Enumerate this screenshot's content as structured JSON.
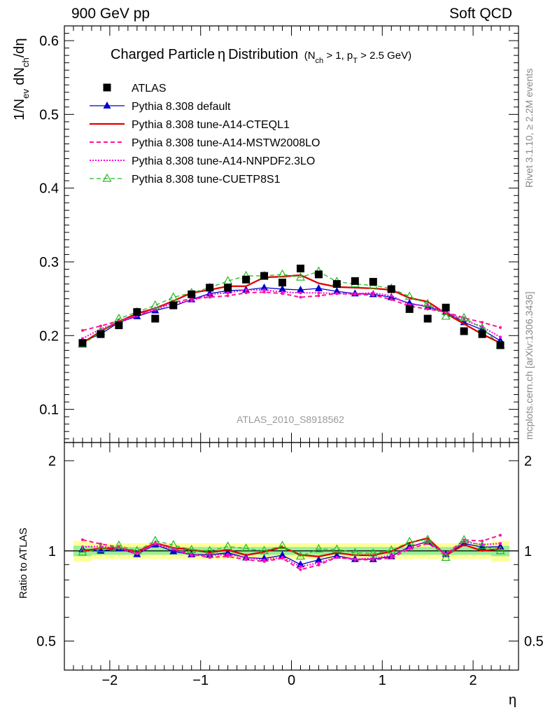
{
  "header": {
    "left": "900 GeV pp",
    "right": "Soft QCD"
  },
  "side_labels": {
    "rivet": "Rivet 3.1.10, ≥ 2.2M events",
    "mcplots": "mcplots.cern.ch [arXiv:1306.3436]"
  },
  "colors": {
    "atlas": "#000000",
    "default": "#0000cc",
    "cteql1": "#e00000",
    "mstw": "#ff1493",
    "nnpdf": "#ff00dd",
    "cuetp8s1": "#22bb22",
    "band_outer": "#ffff99",
    "band_inner": "#99ee99"
  },
  "chart_data": {
    "type": "line",
    "title_main": "Charged Particle",
    "title_eta": "η",
    "title_dist": "Distribution",
    "title_cuts": {
      "nch_pre": "(N",
      "nch_sub": "ch",
      "nch_mid": " > 1, p",
      "pt_sub": "T",
      "pt_post": " > 2.5 GeV)"
    },
    "ylabel": {
      "p1": "1/N",
      "s1": "ev",
      "p2": " dN",
      "s2": "ch",
      "p3": "/dη"
    },
    "xlabel": "η",
    "ratio_ylabel": "Ratio to ATLAS",
    "watermark": "ATLAS_2010_S8918562",
    "xlim": [
      -2.5,
      2.5
    ],
    "ylim": [
      0.055,
      0.62
    ],
    "ratio_ylim": [
      0.4,
      2.3
    ],
    "x_ticks": [
      -2,
      -1,
      0,
      1,
      2
    ],
    "x_tick_labels": [
      "−2",
      "−1",
      "0",
      "1",
      "2"
    ],
    "y_ticks": [
      0.1,
      0.2,
      0.3,
      0.4,
      0.5,
      0.6
    ],
    "y_tick_labels": [
      "0.1",
      "0.2",
      "0.3",
      "0.4",
      "0.5",
      "0.6"
    ],
    "ratio_ticks": [
      0.5,
      1,
      2
    ],
    "ratio_tick_labels": [
      "0.5",
      "1",
      "2"
    ],
    "x": [
      -2.3,
      -2.1,
      -1.9,
      -1.7,
      -1.5,
      -1.3,
      -1.1,
      -0.9,
      -0.7,
      -0.5,
      -0.3,
      -0.1,
      0.1,
      0.3,
      0.5,
      0.7,
      0.9,
      1.1,
      1.3,
      1.5,
      1.7,
      1.9,
      2.1,
      2.3
    ],
    "atlas": [
      0.19,
      0.202,
      0.214,
      0.232,
      0.223,
      0.241,
      0.256,
      0.265,
      0.265,
      0.276,
      0.281,
      0.272,
      0.291,
      0.283,
      0.27,
      0.274,
      0.273,
      0.263,
      0.236,
      0.223,
      0.238,
      0.206,
      0.202,
      0.187
    ],
    "band": {
      "outer_lo": [
        0.92,
        0.94,
        0.94,
        0.94,
        0.94,
        0.94,
        0.94,
        0.94,
        0.94,
        0.94,
        0.94,
        0.94,
        0.94,
        0.94,
        0.94,
        0.94,
        0.94,
        0.94,
        0.94,
        0.94,
        0.94,
        0.94,
        0.94,
        0.92
      ],
      "outer_hi": [
        1.08,
        1.06,
        1.06,
        1.06,
        1.06,
        1.06,
        1.06,
        1.06,
        1.06,
        1.06,
        1.06,
        1.06,
        1.06,
        1.06,
        1.06,
        1.06,
        1.06,
        1.06,
        1.06,
        1.06,
        1.06,
        1.06,
        1.06,
        1.08
      ],
      "inner_lo": [
        0.96,
        0.97,
        0.97,
        0.97,
        0.97,
        0.97,
        0.97,
        0.97,
        0.97,
        0.97,
        0.97,
        0.97,
        0.97,
        0.97,
        0.97,
        0.97,
        0.97,
        0.97,
        0.97,
        0.97,
        0.97,
        0.97,
        0.97,
        0.96
      ],
      "inner_hi": [
        1.04,
        1.03,
        1.03,
        1.03,
        1.03,
        1.03,
        1.03,
        1.03,
        1.03,
        1.03,
        1.03,
        1.03,
        1.03,
        1.03,
        1.03,
        1.03,
        1.03,
        1.03,
        1.03,
        1.03,
        1.03,
        1.03,
        1.03,
        1.04
      ]
    },
    "series": [
      {
        "name": "ATLAS",
        "key": "atlas",
        "marker": "square",
        "line": "none"
      },
      {
        "name": "Pythia 8.308 default",
        "key": "default",
        "marker": "triangle",
        "line": "solid",
        "width": 1.3,
        "values": [
          0.192,
          0.202,
          0.218,
          0.226,
          0.234,
          0.24,
          0.249,
          0.257,
          0.261,
          0.262,
          0.265,
          0.263,
          0.262,
          0.264,
          0.26,
          0.257,
          0.256,
          0.252,
          0.244,
          0.239,
          0.232,
          0.218,
          0.208,
          0.193
        ]
      },
      {
        "name": "Pythia 8.308 tune-A14-CTEQL1",
        "key": "cteql1",
        "marker": "none",
        "line": "solid",
        "width": 2.3,
        "values": [
          0.19,
          0.206,
          0.219,
          0.23,
          0.237,
          0.247,
          0.258,
          0.262,
          0.267,
          0.267,
          0.279,
          0.28,
          0.282,
          0.271,
          0.266,
          0.265,
          0.264,
          0.262,
          0.251,
          0.246,
          0.23,
          0.216,
          0.202,
          0.19
        ]
      },
      {
        "name": "Pythia 8.308 tune-A14-MSTW2008LO",
        "key": "mstw",
        "marker": "dot",
        "line": "dashed",
        "width": 2,
        "values": [
          0.207,
          0.213,
          0.22,
          0.227,
          0.237,
          0.245,
          0.25,
          0.252,
          0.254,
          0.258,
          0.259,
          0.257,
          0.252,
          0.254,
          0.257,
          0.256,
          0.255,
          0.249,
          0.24,
          0.236,
          0.232,
          0.224,
          0.218,
          0.211
        ]
      },
      {
        "name": "Pythia 8.308 tune-A14-NNPDF2.3LO",
        "key": "nnpdf",
        "marker": "dot",
        "line": "dotted",
        "width": 2,
        "values": [
          0.196,
          0.209,
          0.218,
          0.227,
          0.235,
          0.244,
          0.247,
          0.256,
          0.258,
          0.262,
          0.262,
          0.259,
          0.258,
          0.258,
          0.257,
          0.257,
          0.258,
          0.254,
          0.242,
          0.241,
          0.232,
          0.221,
          0.212,
          0.198
        ]
      },
      {
        "name": "Pythia 8.308 tune-CUETP8S1",
        "key": "cuetp8s1",
        "marker": "open-triangle",
        "line": "dashed",
        "width": 1.3,
        "values": [
          0.188,
          0.205,
          0.223,
          0.232,
          0.241,
          0.252,
          0.258,
          0.265,
          0.274,
          0.281,
          0.281,
          0.283,
          0.279,
          0.287,
          0.273,
          0.27,
          0.268,
          0.264,
          0.253,
          0.243,
          0.226,
          0.224,
          0.21,
          0.187
        ]
      }
    ]
  }
}
